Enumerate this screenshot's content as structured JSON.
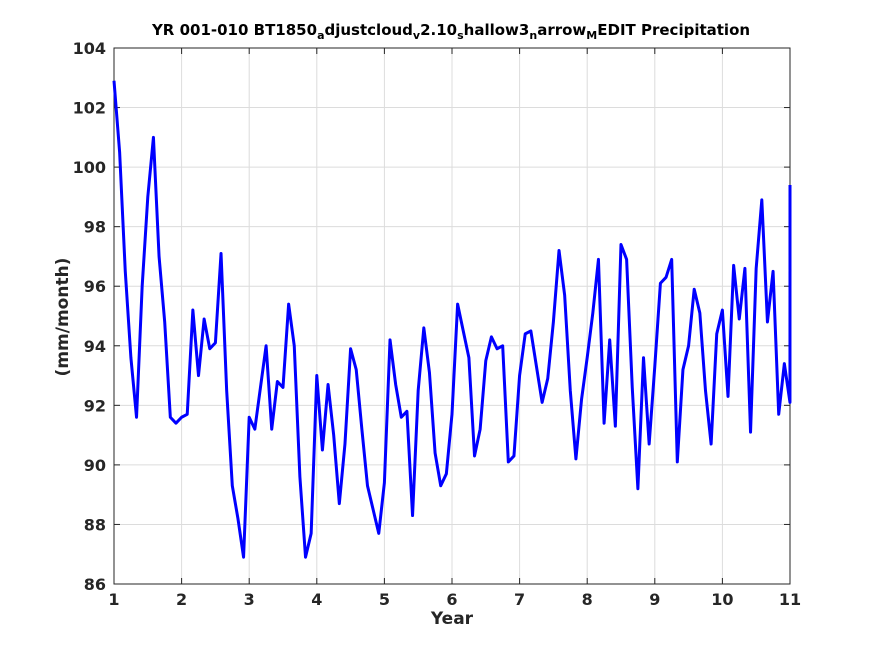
{
  "chart_data": {
    "type": "line",
    "title_parts": [
      {
        "text": "YR 001-010 BT1850",
        "sub": false
      },
      {
        "text": "a",
        "sub": true
      },
      {
        "text": "djustcloud",
        "sub": false
      },
      {
        "text": "v",
        "sub": true
      },
      {
        "text": "2.10",
        "sub": false
      },
      {
        "text": "s",
        "sub": true
      },
      {
        "text": "hallow3",
        "sub": false
      },
      {
        "text": "n",
        "sub": true
      },
      {
        "text": "arrow",
        "sub": false
      },
      {
        "text": "M",
        "sub": true
      },
      {
        "text": "EDIT Precipitation",
        "sub": false
      }
    ],
    "xlabel": "Year",
    "ylabel": "(mm/month)",
    "xlim": [
      1,
      11
    ],
    "ylim": [
      86,
      104
    ],
    "xticks": [
      1,
      2,
      3,
      4,
      5,
      6,
      7,
      8,
      9,
      10,
      11
    ],
    "yticks": [
      86,
      88,
      90,
      92,
      94,
      96,
      98,
      100,
      102,
      104
    ],
    "grid": true,
    "colors": {
      "line": "#0000ff",
      "grid": "#dcdcdc",
      "axis": "#262626"
    },
    "series": [
      {
        "x0": 1.0,
        "dx": 0.08333,
        "values": [
          102.9,
          100.5,
          96.5,
          93.6,
          91.6,
          96.0,
          99.0,
          101.0,
          97.0,
          94.8,
          91.6,
          91.4,
          91.6,
          91.7,
          95.2,
          93.0,
          94.9,
          93.9,
          94.1,
          97.1,
          92.5,
          89.3,
          88.2,
          86.9,
          91.6,
          91.2,
          92.6,
          94.0,
          91.2,
          92.8,
          92.6,
          95.4,
          94.0,
          89.6,
          86.9,
          87.7,
          93.0,
          90.5,
          92.7,
          91.0,
          88.7,
          90.7,
          93.9,
          93.2,
          91.2,
          89.3,
          88.5,
          87.7,
          89.4,
          94.2,
          92.7,
          91.6,
          91.8,
          88.3,
          92.5,
          94.6,
          93.1,
          90.4,
          89.3,
          89.7,
          91.7,
          95.4,
          94.5,
          93.6,
          90.3,
          91.2,
          93.5,
          94.3,
          93.9,
          94.0,
          90.1,
          90.3,
          93.0,
          94.4,
          94.5,
          93.3,
          92.1,
          92.9,
          94.8,
          97.2,
          95.7,
          92.5,
          90.2,
          92.2,
          93.6,
          95.1,
          96.9,
          91.4,
          94.2,
          91.3,
          97.4,
          96.9,
          92.6,
          89.2,
          93.6,
          90.7,
          93.3,
          96.1,
          96.3,
          96.9,
          90.1,
          93.2,
          94.0,
          95.9,
          95.1,
          92.5,
          90.7,
          94.4,
          95.2,
          92.3,
          96.7,
          94.9,
          96.6,
          91.1,
          96.6,
          98.9,
          94.8,
          96.5,
          91.7,
          93.4,
          92.1,
          99.4
        ]
      }
    ]
  }
}
